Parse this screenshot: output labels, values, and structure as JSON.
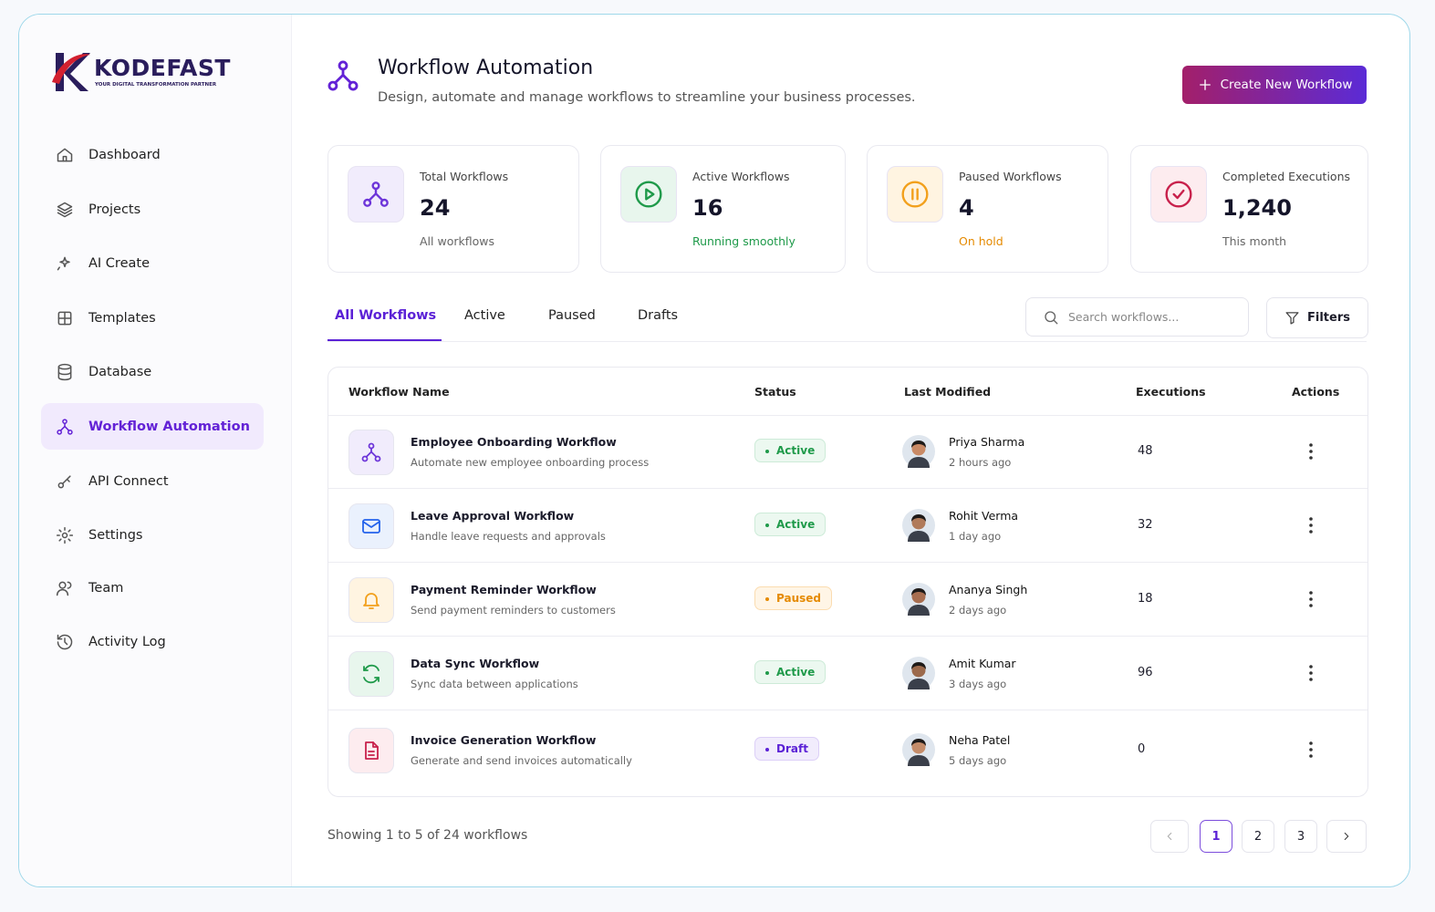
{
  "brand": {
    "name": "KODEFAST",
    "tagline": "YOUR DIGITAL TRANSFORMATION PARTNER"
  },
  "nav": [
    {
      "label": "Dashboard"
    },
    {
      "label": "Projects"
    },
    {
      "label": "AI Create"
    },
    {
      "label": "Templates"
    },
    {
      "label": "Database"
    },
    {
      "label": "Workflow Automation",
      "active": true
    },
    {
      "label": "API Connect"
    },
    {
      "label": "Settings"
    },
    {
      "label": "Team"
    },
    {
      "label": "Activity Log"
    }
  ],
  "header": {
    "title": "Workflow Automation",
    "subtitle": "Design, automate and manage workflows to streamline your business processes.",
    "button": "Create New Workflow"
  },
  "stats": [
    {
      "label": "Total Workflows",
      "value": "24",
      "note": "All workflows"
    },
    {
      "label": "Active Workflows",
      "value": "16",
      "note": "Running smoothly"
    },
    {
      "label": "Paused Workflows",
      "value": "4",
      "note": "On hold"
    },
    {
      "label": "Completed Executions",
      "value": "1,240",
      "note": "This month"
    }
  ],
  "tabs": [
    {
      "label": "All Workflows",
      "active": true
    },
    {
      "label": "Active"
    },
    {
      "label": "Paused"
    },
    {
      "label": "Drafts"
    }
  ],
  "search_placeholder": "Search workflows...",
  "filters": "Filters",
  "table": {
    "columns": [
      "Workflow Name",
      "Status",
      "Last Modified",
      "Executions",
      "Actions"
    ],
    "rows": [
      {
        "name": "Employee Onboarding Workflow",
        "description": "Automate new employee onboarding process",
        "status": "Active",
        "user": "Priya Sharma",
        "time": "2 hours ago",
        "executions": 48
      },
      {
        "name": "Leave Approval Workflow",
        "description": "Handle leave requests and approvals",
        "status": "Active",
        "user": "Rohit Verma",
        "time": "1 day ago",
        "executions": 32
      },
      {
        "name": "Payment Reminder Workflow",
        "description": "Send payment reminders to customers",
        "status": "Paused",
        "user": "Ananya Singh",
        "time": "2 days ago",
        "executions": 18
      },
      {
        "name": "Data Sync Workflow",
        "description": "Sync data between applications",
        "status": "Active",
        "user": "Amit Kumar",
        "time": "3 days ago",
        "executions": 96
      },
      {
        "name": "Invoice Generation Workflow",
        "description": "Generate and send invoices automatically",
        "status": "Draft",
        "user": "Neha Patel",
        "time": "5 days ago",
        "executions": 0
      }
    ]
  },
  "footer": {
    "showing": "Showing 1 to 5 of 24 workflows",
    "pages": [
      1,
      2,
      3
    ],
    "current_page": 1
  }
}
